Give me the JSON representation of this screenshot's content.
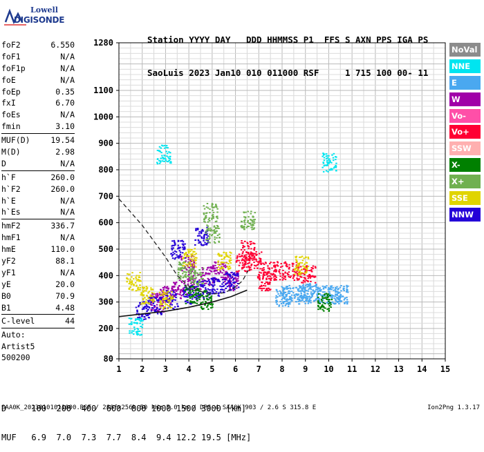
{
  "logo": {
    "brand": "Lowell",
    "product": "DIGISONDE"
  },
  "header": {
    "labels_line": "Station YYYY DAY   DDD HHMMSS P1  FFS S AXN PPS IGA PS",
    "values_line": "SaoLuis 2023 Jan10 010 011000 RSF     1 715 100 00- 11"
  },
  "params": [
    {
      "label": "foF2",
      "value": "6.550"
    },
    {
      "label": "foF1",
      "value": "N/A"
    },
    {
      "label": "foF1p",
      "value": "N/A"
    },
    {
      "label": "foE",
      "value": "N/A"
    },
    {
      "label": "foEp",
      "value": "0.35"
    },
    {
      "label": "fxI",
      "value": "6.70"
    },
    {
      "label": "foEs",
      "value": "N/A"
    },
    {
      "label": "fmin",
      "value": "3.10"
    },
    {
      "label": "MUF(D)",
      "value": "19.54"
    },
    {
      "label": "M(D)",
      "value": "2.98"
    },
    {
      "label": "D",
      "value": "N/A"
    },
    {
      "label": "h`F",
      "value": "260.0"
    },
    {
      "label": "h`F2",
      "value": "260.0"
    },
    {
      "label": "h`E",
      "value": "N/A"
    },
    {
      "label": "h`Es",
      "value": "N/A"
    },
    {
      "label": "hmF2",
      "value": "336.7"
    },
    {
      "label": "hmF1",
      "value": "N/A"
    },
    {
      "label": "hmE",
      "value": "110.0"
    },
    {
      "label": "yF2",
      "value": "88.1"
    },
    {
      "label": "yF1",
      "value": "N/A"
    },
    {
      "label": "yE",
      "value": "20.0"
    },
    {
      "label": "B0",
      "value": "70.9"
    },
    {
      "label": "B1",
      "value": "4.48"
    },
    {
      "label": "C-level",
      "value": "44"
    }
  ],
  "auto_lines": [
    "Auto:",
    "Artist5",
    "500200"
  ],
  "legend": [
    {
      "label": "NoVal",
      "color": "#8c8c8c"
    },
    {
      "label": "NNE",
      "color": "#00e5f0"
    },
    {
      "label": "E",
      "color": "#4aa8f0"
    },
    {
      "label": "W",
      "color": "#a000a8"
    },
    {
      "label": "Vo-",
      "color": "#ff4fa8"
    },
    {
      "label": "Vo+",
      "color": "#ff0033"
    },
    {
      "label": "SSW",
      "color": "#ffb0b0"
    },
    {
      "label": "X-",
      "color": "#008000"
    },
    {
      "label": "X+",
      "color": "#70b050"
    },
    {
      "label": "SSE",
      "color": "#e0d400"
    },
    {
      "label": "NNW",
      "color": "#2400d8"
    }
  ],
  "muf_table": {
    "d_line": "D     100  200  400  600  800 1000 1500 3000 [km]",
    "muf_line": "MUF   6.9  7.0  7.3  7.7  8.4  9.4 12.2 19.5 [MHz]"
  },
  "footer": {
    "left": "SAA0K_20230101011000.RSF / 280fx256h 50 kHz 5.0 km / DPS-4 SAA0K 903 / 2.6 S 315.8 E",
    "right": "Ion2Png 1.3.17"
  },
  "chart_data": {
    "type": "scatter",
    "title": "",
    "xlabel": "",
    "ylabel": "",
    "xlim": [
      1,
      15
    ],
    "ylim": [
      80,
      1280
    ],
    "x_ticks": [
      "1",
      "2",
      "3",
      "4",
      "5",
      "6",
      "7",
      "8",
      "9",
      "10",
      "11",
      "12",
      "13",
      "14",
      "15"
    ],
    "y_ticks": [
      "80",
      "200",
      "300",
      "400",
      "500",
      "600",
      "700",
      "800",
      "900",
      "1000",
      "1100",
      "1280"
    ],
    "grid": true,
    "traces": [
      {
        "name": "E",
        "color": "#4aa8f0",
        "points": [
          [
            8.2,
            330
          ],
          [
            8.8,
            330
          ],
          [
            9.3,
            335
          ],
          [
            9.8,
            330
          ],
          [
            10.2,
            330
          ],
          [
            10.5,
            330
          ],
          [
            8.0,
            320
          ],
          [
            9.0,
            340
          ]
        ]
      },
      {
        "name": "Vo+",
        "color": "#ff0033",
        "points": [
          [
            6.3,
            450
          ],
          [
            6.8,
            460
          ],
          [
            7.4,
            420
          ],
          [
            7.9,
            420
          ],
          [
            8.5,
            420
          ],
          [
            9.1,
            410
          ],
          [
            7.2,
            380
          ],
          [
            6.5,
            500
          ]
        ]
      },
      {
        "name": "W",
        "color": "#a000a8",
        "points": [
          [
            3.0,
            330
          ],
          [
            3.6,
            350
          ],
          [
            4.2,
            380
          ],
          [
            4.8,
            400
          ],
          [
            5.3,
            420
          ],
          [
            2.6,
            300
          ],
          [
            3.9,
            450
          ],
          [
            5.8,
            380
          ]
        ]
      },
      {
        "name": "NNW",
        "color": "#2400d8",
        "points": [
          [
            2.5,
            290
          ],
          [
            3.2,
            310
          ],
          [
            4.0,
            330
          ],
          [
            4.6,
            350
          ],
          [
            5.2,
            360
          ],
          [
            5.8,
            380
          ],
          [
            2.0,
            270
          ],
          [
            3.5,
            500
          ],
          [
            4.5,
            550
          ]
        ]
      },
      {
        "name": "X+",
        "color": "#70b050",
        "points": [
          [
            3.8,
            420
          ],
          [
            4.3,
            400
          ],
          [
            4.9,
            640
          ],
          [
            5.0,
            560
          ],
          [
            6.5,
            610
          ]
        ]
      },
      {
        "name": "SSE",
        "color": "#e0d400",
        "points": [
          [
            1.6,
            380
          ],
          [
            2.2,
            330
          ],
          [
            3.0,
            310
          ],
          [
            4.0,
            470
          ],
          [
            5.5,
            460
          ],
          [
            8.8,
            440
          ]
        ]
      },
      {
        "name": "X-",
        "color": "#008000",
        "points": [
          [
            4.1,
            330
          ],
          [
            4.7,
            310
          ],
          [
            9.8,
            300
          ]
        ]
      },
      {
        "name": "NNE",
        "color": "#00e5f0",
        "points": [
          [
            1.7,
            210
          ],
          [
            2.9,
            860
          ],
          [
            10.0,
            830
          ]
        ]
      }
    ],
    "virtual_height_curve": [
      [
        1.0,
        690
      ],
      [
        1.5,
        640
      ],
      [
        2.0,
        590
      ],
      [
        2.5,
        530
      ],
      [
        3.0,
        470
      ],
      [
        3.5,
        400
      ],
      [
        4.0,
        360
      ],
      [
        4.5,
        340
      ],
      [
        5.0,
        330
      ],
      [
        5.5,
        335
      ],
      [
        5.9,
        350
      ],
      [
        6.3,
        380
      ],
      [
        6.55,
        420
      ]
    ],
    "extraction_curve": [
      [
        1.0,
        245
      ],
      [
        2.0,
        255
      ],
      [
        3.0,
        265
      ],
      [
        4.0,
        280
      ],
      [
        5.0,
        300
      ],
      [
        5.8,
        320
      ],
      [
        6.5,
        345
      ]
    ]
  }
}
